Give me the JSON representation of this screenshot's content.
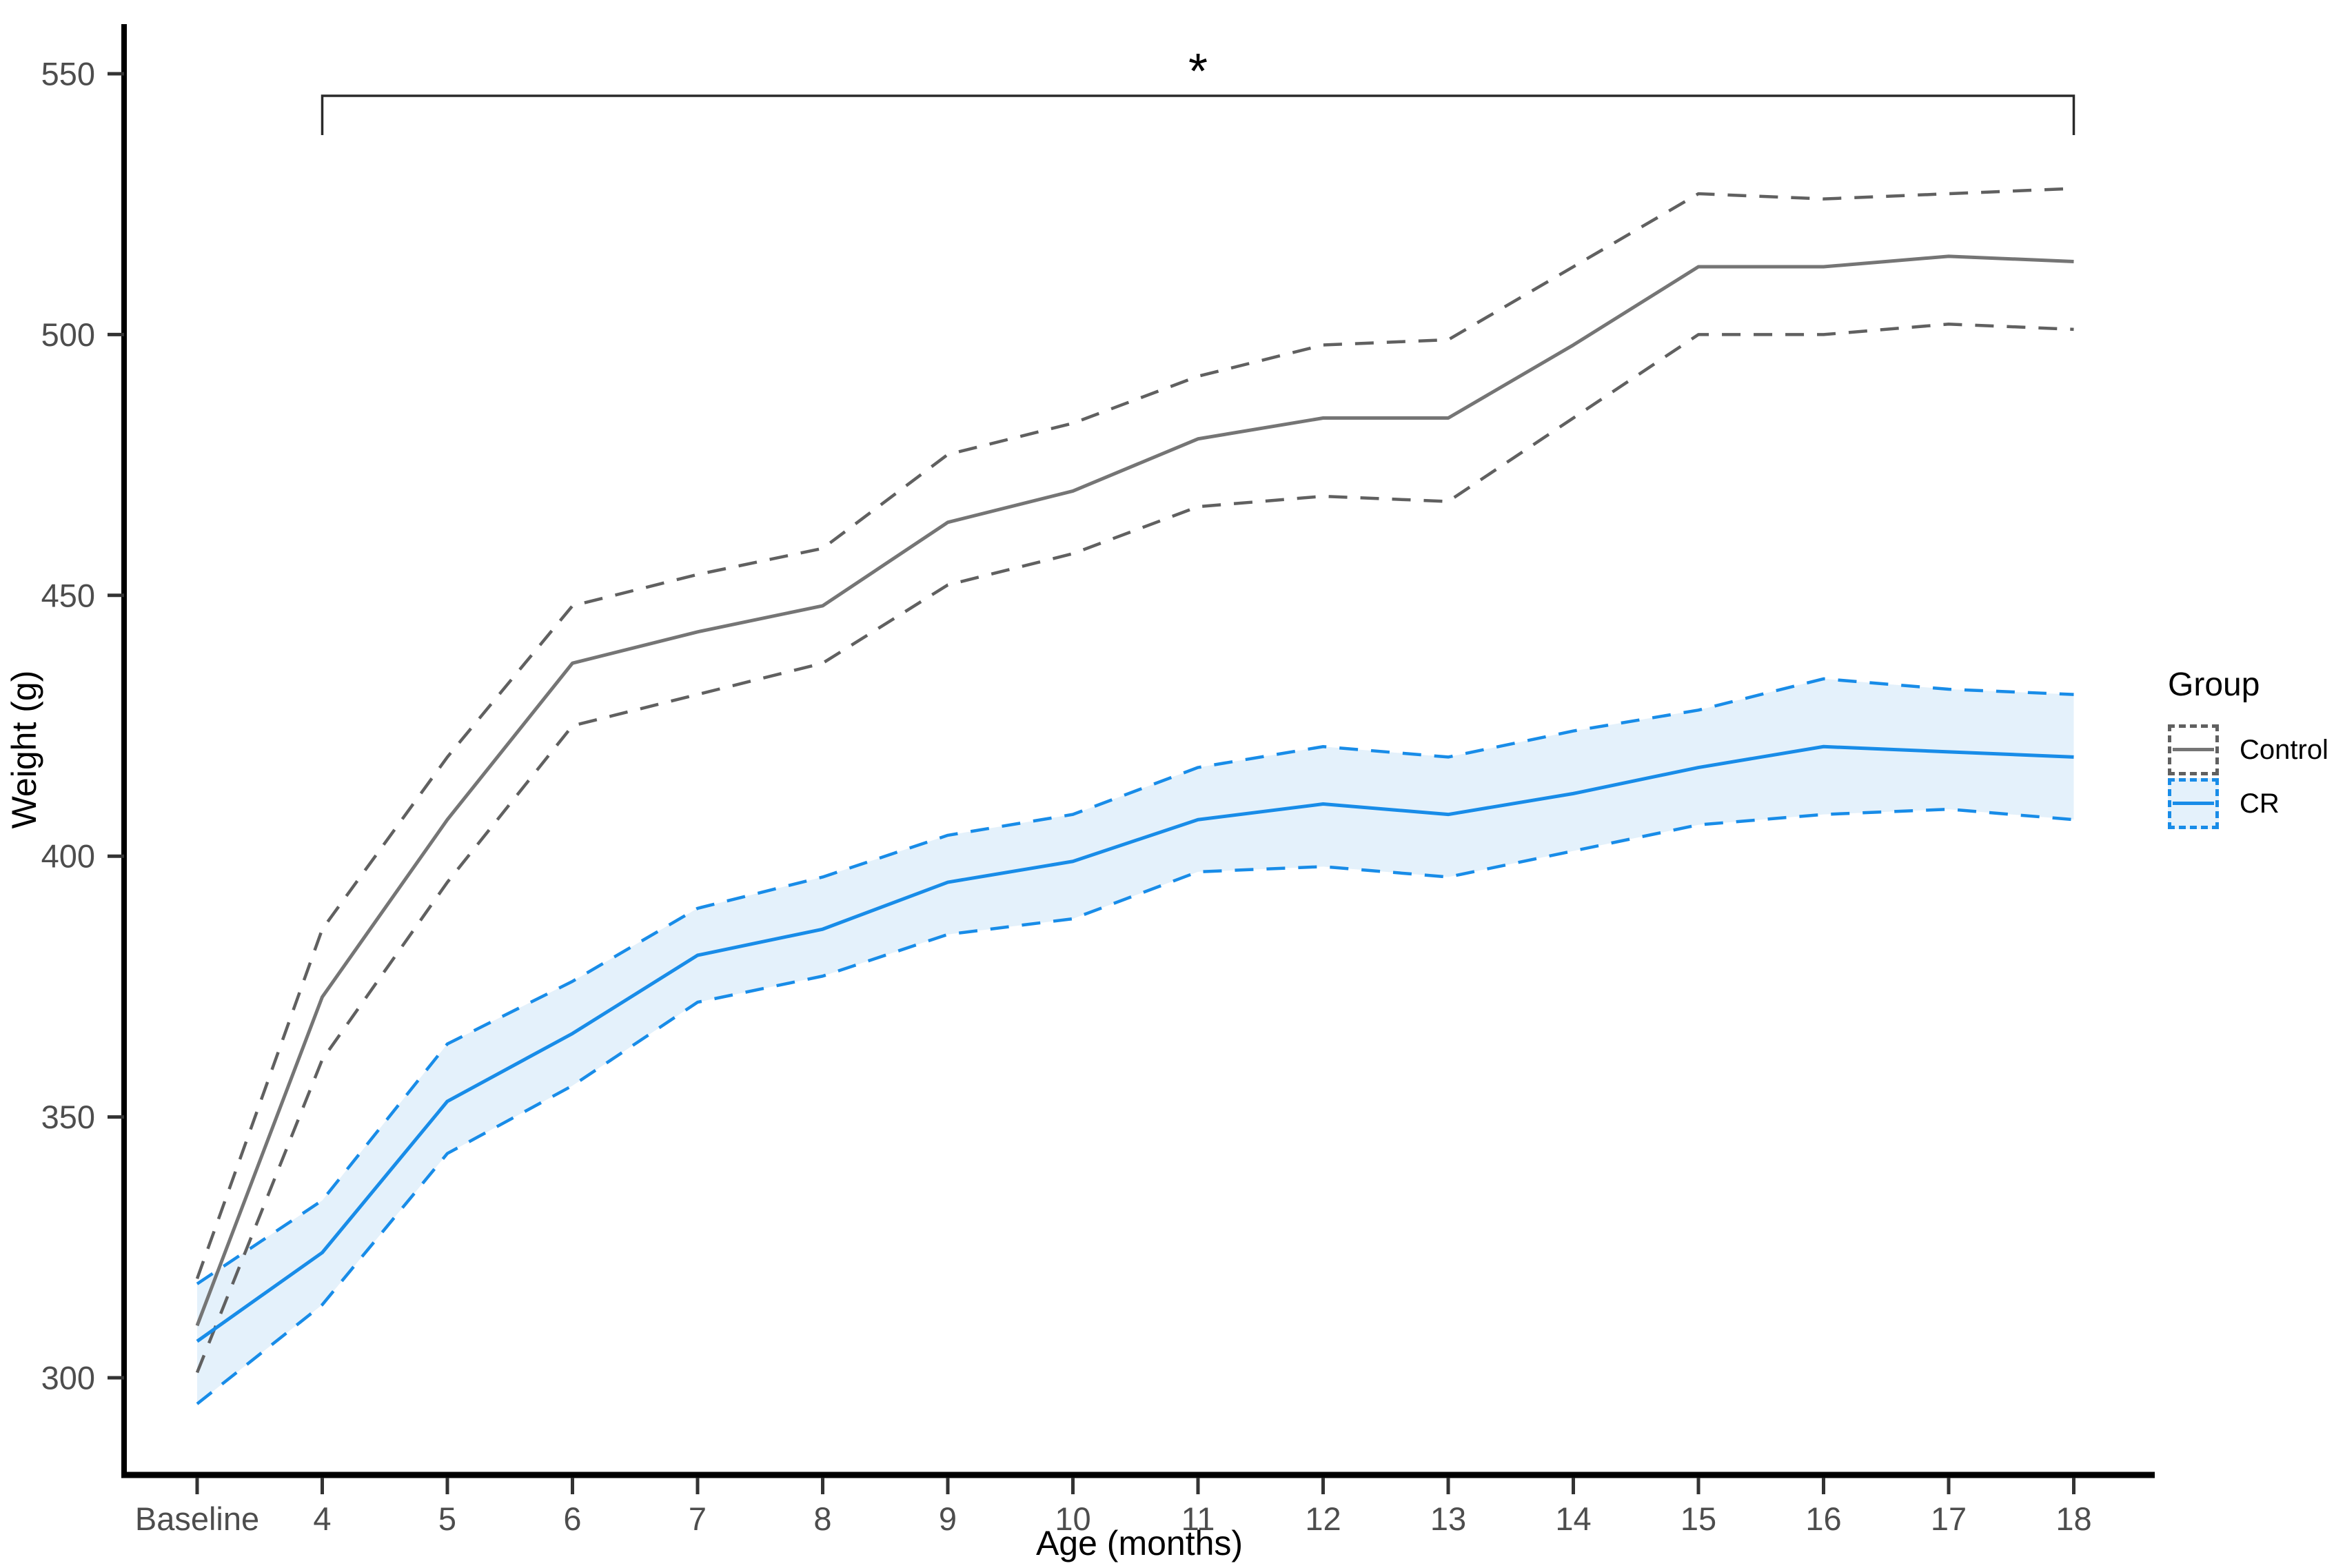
{
  "chart_data": {
    "type": "line",
    "title": "",
    "xlabel": "Age (months)",
    "ylabel": "Weight (g)",
    "categories": [
      "Baseline",
      "4",
      "5",
      "6",
      "7",
      "8",
      "9",
      "10",
      "11",
      "12",
      "13",
      "14",
      "15",
      "16",
      "17",
      "18"
    ],
    "yticks": [
      300,
      350,
      400,
      450,
      500,
      550
    ],
    "ylim": [
      281,
      560
    ],
    "grid": false,
    "legend": {
      "title": "Group",
      "position": "right",
      "entries": [
        {
          "label": "Control",
          "line_color": "#757575",
          "border_color": "#606060",
          "fill": "transparent"
        },
        {
          "label": "CR",
          "line_color": "#188CE8",
          "border_color": "#188CE8",
          "fill": "#E4F1FB"
        }
      ]
    },
    "annotation": {
      "symbol": "*",
      "from": "4",
      "to": "18",
      "meaning": "significant difference bracket spanning months 4 to 18"
    },
    "ribbon": {
      "group": "CR",
      "fill": "#E4F1FB"
    },
    "series": [
      {
        "name": "Control mean",
        "group": "Control",
        "role": "mean",
        "style": "solid",
        "color": "#757575",
        "values": [
          310,
          373,
          407,
          437,
          443,
          448,
          464,
          470,
          480,
          484,
          484,
          498,
          513,
          513,
          515,
          514
        ]
      },
      {
        "name": "Control CI upper",
        "group": "Control",
        "role": "ci-upper",
        "style": "dashed",
        "color": "#606060",
        "values": [
          319,
          386,
          419,
          448,
          454,
          459,
          477,
          483,
          492,
          498,
          499,
          513,
          527,
          526,
          527,
          528
        ]
      },
      {
        "name": "Control CI lower",
        "group": "Control",
        "role": "ci-lower",
        "style": "dashed",
        "color": "#606060",
        "values": [
          301,
          361,
          395,
          425,
          431,
          437,
          452,
          458,
          467,
          469,
          468,
          484,
          500,
          500,
          502,
          501
        ]
      },
      {
        "name": "CR mean",
        "group": "CR",
        "role": "mean",
        "style": "solid",
        "color": "#188CE8",
        "values": [
          307,
          324,
          353,
          366,
          381,
          386,
          395,
          399,
          407,
          410,
          408,
          412,
          417,
          421,
          420,
          419
        ]
      },
      {
        "name": "CR CI upper",
        "group": "CR",
        "role": "ci-upper",
        "style": "dashed",
        "color": "#188CE8",
        "values": [
          318,
          334,
          364,
          376,
          390,
          396,
          404,
          408,
          417,
          421,
          419,
          424,
          428,
          434,
          432,
          431
        ]
      },
      {
        "name": "CR CI lower",
        "group": "CR",
        "role": "ci-lower",
        "style": "dashed",
        "color": "#188CE8",
        "values": [
          295,
          314,
          343,
          356,
          372,
          377,
          385,
          388,
          397,
          398,
          396,
          401,
          406,
          408,
          409,
          407
        ]
      }
    ],
    "axis_text_color": "#4D4D4D",
    "axis_line_color": "#000000"
  }
}
